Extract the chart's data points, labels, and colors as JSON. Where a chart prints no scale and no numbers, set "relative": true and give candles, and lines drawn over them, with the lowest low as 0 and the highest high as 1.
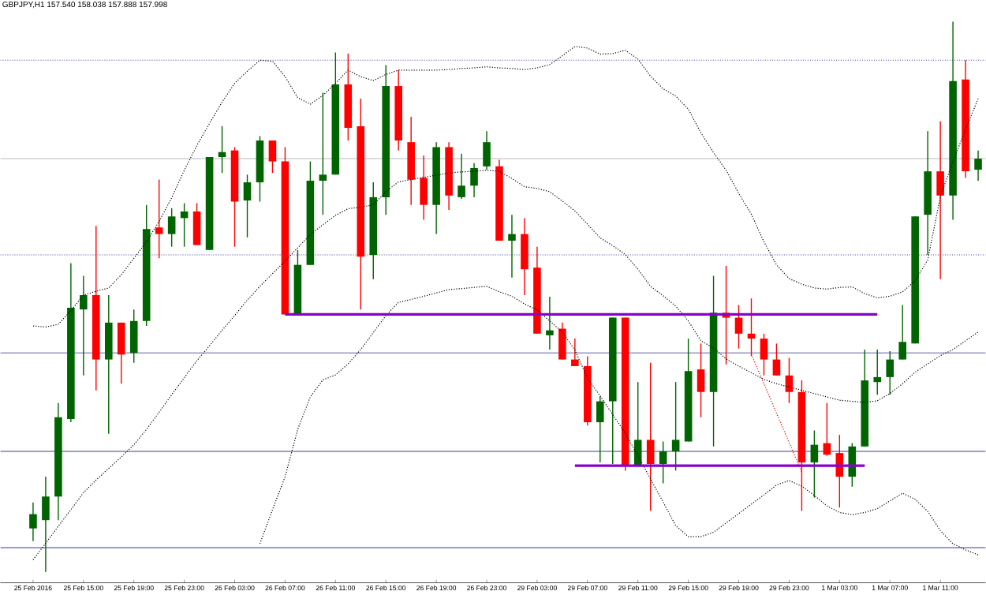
{
  "chart_data": {
    "type": "candlestick",
    "title": "GBPJPY,H1  157.540 158.038 157.888 157.998",
    "relative": true,
    "categories": [
      "25 Feb 2016",
      null,
      null,
      null,
      "25 Feb 15:00",
      null,
      null,
      null,
      "25 Feb 19:00",
      null,
      null,
      null,
      "25 Feb 23:00",
      null,
      null,
      null,
      "26 Feb 03:00",
      null,
      null,
      null,
      "26 Feb 07:00",
      null,
      null,
      null,
      "26 Feb 11:00",
      null,
      null,
      null,
      "26 Feb 15:00",
      null,
      null,
      null,
      "26 Feb 19:00",
      null,
      null,
      null,
      "26 Feb 23:00",
      null,
      null,
      null,
      "29 Feb 03:00",
      null,
      null,
      null,
      "29 Feb 07:00",
      null,
      null,
      null,
      "29 Feb 11:00",
      null,
      null,
      null,
      "29 Feb 15:00",
      null,
      null,
      null,
      "29 Feb 19:00",
      null,
      null,
      null,
      "29 Feb 23:00",
      null,
      null,
      null,
      "1 Mar 03:00",
      null,
      null,
      null,
      "1 Mar 07:00",
      null,
      null,
      null,
      "1 Mar 11:00",
      null,
      null,
      null
    ],
    "ohlc": [
      [
        0.079,
        0.126,
        0.056,
        0.105
      ],
      [
        0.094,
        0.173,
        0,
        0.137
      ],
      [
        0.137,
        0.307,
        0.094,
        0.281
      ],
      [
        0.278,
        0.561,
        0.272,
        0.48
      ],
      [
        0.477,
        0.538,
        0.357,
        0.503
      ],
      [
        0.503,
        0.629,
        0.33,
        0.386
      ],
      [
        0.386,
        0.503,
        0.251,
        0.453
      ],
      [
        0.453,
        0.453,
        0.342,
        0.395
      ],
      [
        0.398,
        0.477,
        0.38,
        0.456
      ],
      [
        0.456,
        0.667,
        0.447,
        0.623
      ],
      [
        0.626,
        0.713,
        0.57,
        0.614
      ],
      [
        0.614,
        0.661,
        0.591,
        0.646
      ],
      [
        0.643,
        0.67,
        0.591,
        0.655
      ],
      [
        0.655,
        0.67,
        0.594,
        0.594
      ],
      [
        0.585,
        0.754,
        0.585,
        0.754
      ],
      [
        0.754,
        0.81,
        0.725,
        0.763
      ],
      [
        0.766,
        0.772,
        0.591,
        0.673
      ],
      [
        0.675,
        0.722,
        0.608,
        0.708
      ],
      [
        0.708,
        0.792,
        0.673,
        0.784
      ],
      [
        0.784,
        0.784,
        0.725,
        0.746
      ],
      [
        0.746,
        0.772,
        0.468,
        0.468
      ],
      [
        0.468,
        0.585,
        0.468,
        0.558
      ],
      [
        0.558,
        0.746,
        0.558,
        0.711
      ],
      [
        0.711,
        0.871,
        0.649,
        0.722
      ],
      [
        0.722,
        0.944,
        0.722,
        0.886
      ],
      [
        0.886,
        0.942,
        0.784,
        0.807
      ],
      [
        0.81,
        0.86,
        0.477,
        0.573
      ],
      [
        0.576,
        0.708,
        0.532,
        0.681
      ],
      [
        0.681,
        0.921,
        0.649,
        0.883
      ],
      [
        0.883,
        0.912,
        0.766,
        0.784
      ],
      [
        0.781,
        0.827,
        0.667,
        0.713
      ],
      [
        0.716,
        0.757,
        0.64,
        0.667
      ],
      [
        0.667,
        0.781,
        0.614,
        0.772
      ],
      [
        0.772,
        0.781,
        0.658,
        0.684
      ],
      [
        0.681,
        0.76,
        0.678,
        0.702
      ],
      [
        0.702,
        0.743,
        0.681,
        0.734
      ],
      [
        0.737,
        0.801,
        0.731,
        0.781
      ],
      [
        0.737,
        0.749,
        0.602,
        0.602
      ],
      [
        0.602,
        0.649,
        0.535,
        0.614
      ],
      [
        0.614,
        0.643,
        0.503,
        0.55
      ],
      [
        0.553,
        0.591,
        0.433,
        0.433
      ],
      [
        0.43,
        0.5,
        0.404,
        0.439
      ],
      [
        0.442,
        0.453,
        0.386,
        0.386
      ],
      [
        0.386,
        0.424,
        0.374,
        0.374
      ],
      [
        0.374,
        0.392,
        0.266,
        0.272
      ],
      [
        0.272,
        0.319,
        0.199,
        0.31
      ],
      [
        0.31,
        0.462,
        0.196,
        0.462
      ],
      [
        0.462,
        0.462,
        0.184,
        0.193
      ],
      [
        0.193,
        0.345,
        0.193,
        0.24
      ],
      [
        0.24,
        0.38,
        0.111,
        0.196
      ],
      [
        0.196,
        0.237,
        0.161,
        0.219
      ],
      [
        0.219,
        0.345,
        0.184,
        0.24
      ],
      [
        0.237,
        0.424,
        0.237,
        0.365
      ],
      [
        0.368,
        0.415,
        0.281,
        0.327
      ],
      [
        0.327,
        0.538,
        0.228,
        0.471
      ],
      [
        0.471,
        0.556,
        0.377,
        0.462
      ],
      [
        0.462,
        0.485,
        0.406,
        0.433
      ],
      [
        0.433,
        0.497,
        0.392,
        0.424
      ],
      [
        0.424,
        0.433,
        0.357,
        0.386
      ],
      [
        0.386,
        0.415,
        0.357,
        0.357
      ],
      [
        0.357,
        0.389,
        0.307,
        0.327
      ],
      [
        0.327,
        0.348,
        0.111,
        0.199
      ],
      [
        0.199,
        0.257,
        0.135,
        0.231
      ],
      [
        0.234,
        0.307,
        0.211,
        0.213
      ],
      [
        0.216,
        0.249,
        0.117,
        0.173
      ],
      [
        0.173,
        0.234,
        0.155,
        0.228
      ],
      [
        0.228,
        0.404,
        0.228,
        0.348
      ],
      [
        0.345,
        0.404,
        0.322,
        0.354
      ],
      [
        0.354,
        0.401,
        0.322,
        0.386
      ],
      [
        0.386,
        0.485,
        0.386,
        0.418
      ],
      [
        0.415,
        0.646,
        0.415,
        0.646
      ],
      [
        0.649,
        0.801,
        0.576,
        0.728
      ],
      [
        0.728,
        0.819,
        0.532,
        0.684
      ],
      [
        0.684,
        1,
        0.64,
        0.892
      ],
      [
        0.895,
        0.93,
        0.716,
        0.728
      ],
      [
        0.731,
        0.766,
        0.711,
        0.751
      ]
    ],
    "colors": [
      "#006400",
      "#006400",
      "#006400",
      "#006400",
      "#006400",
      "#ff0000",
      "#006400",
      "#ff0000",
      "#006400",
      "#006400",
      "#ff0000",
      "#006400",
      "#006400",
      "#ff0000",
      "#006400",
      "#006400",
      "#ff0000",
      "#006400",
      "#006400",
      "#ff0000",
      "#ff0000",
      "#006400",
      "#006400",
      "#006400",
      "#006400",
      "#ff0000",
      "#ff0000",
      "#006400",
      "#006400",
      "#ff0000",
      "#ff0000",
      "#ff0000",
      "#006400",
      "#ff0000",
      "#006400",
      "#006400",
      "#006400",
      "#ff0000",
      "#006400",
      "#ff0000",
      "#ff0000",
      "#006400",
      "#ff0000",
      "#ff0000",
      "#ff0000",
      "#006400",
      "#006400",
      "#ff0000",
      "#006400",
      "#ff0000",
      "#006400",
      "#006400",
      "#006400",
      "#ff0000",
      "#006400",
      "#ff0000",
      "#ff0000",
      "#ff0000",
      "#ff0000",
      "#ff0000",
      "#ff0000",
      "#ff0000",
      "#006400",
      "#ff0000",
      "#ff0000",
      "#006400",
      "#006400",
      "#006400",
      "#006400",
      "#006400",
      "#006400",
      "#006400",
      "#ff0000",
      "#006400",
      "#ff0000",
      "#006400"
    ],
    "ref_lines": [
      {
        "axis": "y",
        "value": 0.93,
        "color": "#3c3c9c",
        "line_style": "dotted"
      },
      {
        "axis": "y",
        "value": 0.751,
        "color": "#b4bcc8",
        "line_style": "solid"
      },
      {
        "axis": "y",
        "value": 0.576,
        "color": "#3c3c9c",
        "line_style": "dotted"
      },
      {
        "axis": "y",
        "value": 0.398,
        "color": "#3c3c9c",
        "line_style": "solid"
      },
      {
        "axis": "y",
        "value": 0.219,
        "color": "#3c3c9c",
        "line_style": "solid"
      },
      {
        "axis": "y",
        "value": 0.044,
        "color": "#3c3c9c",
        "line_style": "solid"
      }
    ],
    "series": [
      {
        "type": "line",
        "color": "#000000",
        "line_style": "dotted",
        "marker": "none",
        "values": [
          0.447,
          0.445,
          0.45,
          0.475,
          0.503,
          0.51,
          0.516,
          0.54,
          0.57,
          0.6,
          0.637,
          0.68,
          0.73,
          0.775,
          0.815,
          0.854,
          0.888,
          0.91,
          0.93,
          0.928,
          0.9,
          0.862,
          0.85,
          0.866,
          0.888,
          0.912,
          0.9,
          0.893,
          0.904,
          0.912,
          0.912,
          0.912,
          0.912,
          0.913,
          0.915,
          0.916,
          0.918,
          0.916,
          0.915,
          0.913,
          0.916,
          0.922,
          0.938,
          0.955,
          0.952,
          0.941,
          0.942,
          0.948,
          0.932,
          0.901,
          0.878,
          0.865,
          0.841,
          0.798,
          0.762,
          0.73,
          0.688,
          0.65,
          0.6,
          0.558,
          0.533,
          0.523,
          0.516,
          0.514,
          0.517,
          0.518,
          0.506,
          0.498,
          0.501,
          0.509,
          0.529,
          0.567,
          0.682,
          0.746,
          0.804,
          0.86
        ]
      },
      {
        "type": "line",
        "color": "#000000",
        "line_style": "dotted",
        "marker": "none",
        "values": [
          0.022,
          0.052,
          0.083,
          0.113,
          0.144,
          0.167,
          0.188,
          0.209,
          0.231,
          0.259,
          0.29,
          0.322,
          0.353,
          0.384,
          0.411,
          0.439,
          0.466,
          0.494,
          0.519,
          0.542,
          0.565,
          0.589,
          0.613,
          0.631,
          0.648,
          0.66,
          0.663,
          0.667,
          0.691,
          0.709,
          0.713,
          0.717,
          0.721,
          0.725,
          0.727,
          0.728,
          0.73,
          0.728,
          0.715,
          0.7,
          0.697,
          0.691,
          0.674,
          0.656,
          0.632,
          0.607,
          0.593,
          0.577,
          0.55,
          0.519,
          0.502,
          0.483,
          0.456,
          0.42,
          0.407,
          0.387,
          0.374,
          0.362,
          0.35,
          0.342,
          0.336,
          0.33,
          0.324,
          0.318,
          0.312,
          0.31,
          0.308,
          0.311,
          0.324,
          0.342,
          0.363,
          0.378,
          0.393,
          0.404,
          0.42,
          0.436
        ]
      },
      {
        "type": "line",
        "color": "#000000",
        "line_style": "dotted",
        "marker": "none",
        "values": [
          null,
          null,
          null,
          null,
          null,
          null,
          null,
          null,
          null,
          null,
          null,
          null,
          null,
          null,
          null,
          null,
          null,
          null,
          0.051,
          0.113,
          0.173,
          0.259,
          0.318,
          0.349,
          0.358,
          0.378,
          0.404,
          0.435,
          0.466,
          0.49,
          0.495,
          0.501,
          0.507,
          0.513,
          0.515,
          0.517,
          0.519,
          0.509,
          0.501,
          0.487,
          0.476,
          0.456,
          0.436,
          0.403,
          0.352,
          0.32,
          0.286,
          0.252,
          0.211,
          0.169,
          0.127,
          0.084,
          0.064,
          0.064,
          0.072,
          0.089,
          0.106,
          0.123,
          0.14,
          0.158,
          0.166,
          0.156,
          0.139,
          0.12,
          0.108,
          0.104,
          0.108,
          0.115,
          0.129,
          0.143,
          0.132,
          0.11,
          0.075,
          0.051,
          0.04,
          0.031
        ]
      },
      {
        "type": "line",
        "color": "#ff0000",
        "line_style": "dotted",
        "marker": "none",
        "values": [
          null,
          null,
          null,
          null,
          null,
          null,
          null,
          null,
          null,
          null,
          null,
          null,
          null,
          null,
          null,
          null,
          null,
          null,
          null,
          null,
          null,
          null,
          null,
          null,
          null,
          null,
          null,
          null,
          null,
          null,
          null,
          null,
          null,
          null,
          null,
          null,
          null,
          null,
          null,
          null,
          null,
          null,
          null,
          null,
          null,
          null,
          null,
          null,
          null,
          null,
          null,
          null,
          null,
          null,
          null,
          null,
          null,
          0.395,
          0.342,
          0.288,
          0.235,
          0.181,
          null,
          null,
          null,
          null,
          null,
          null,
          null,
          null,
          null,
          null,
          null,
          null,
          null,
          null
        ]
      },
      {
        "type": "line",
        "color": "#8800cc",
        "line_style": "solid",
        "marker": "none",
        "values": [
          null,
          null,
          null,
          null,
          null,
          null,
          null,
          null,
          null,
          null,
          null,
          null,
          null,
          null,
          null,
          null,
          null,
          null,
          null,
          null,
          0.468,
          0.468,
          0.468,
          0.468,
          0.468,
          0.468,
          0.468,
          0.468,
          0.468,
          0.468,
          0.468,
          0.468,
          0.468,
          0.468,
          0.468,
          0.468,
          0.468,
          0.468,
          0.468,
          0.468,
          0.468,
          0.468,
          0.468,
          0.468,
          0.468,
          0.468,
          0.468,
          0.468,
          0.468,
          0.468,
          0.468,
          0.468,
          0.468,
          0.468,
          0.468,
          0.468,
          0.468,
          0.468,
          0.468,
          0.468,
          0.468,
          0.468,
          0.468,
          0.468,
          0.468,
          0.468,
          0.468,
          0.468,
          null,
          null,
          null,
          null,
          null,
          null,
          null,
          null
        ]
      },
      {
        "type": "line",
        "color": "#8800cc",
        "line_style": "solid",
        "marker": "none",
        "values": [
          null,
          null,
          null,
          null,
          null,
          null,
          null,
          null,
          null,
          null,
          null,
          null,
          null,
          null,
          null,
          null,
          null,
          null,
          null,
          null,
          null,
          null,
          null,
          null,
          null,
          null,
          null,
          null,
          null,
          null,
          null,
          null,
          null,
          null,
          null,
          null,
          null,
          null,
          null,
          null,
          null,
          null,
          null,
          0.193,
          0.193,
          0.193,
          0.193,
          0.193,
          0.193,
          0.193,
          0.193,
          0.193,
          0.193,
          0.193,
          0.193,
          0.193,
          0.193,
          0.193,
          0.193,
          0.193,
          0.193,
          0.193,
          0.193,
          0.193,
          0.193,
          0.193,
          0.193,
          null,
          null,
          null,
          null,
          null,
          null,
          null,
          null,
          null
        ]
      }
    ]
  }
}
